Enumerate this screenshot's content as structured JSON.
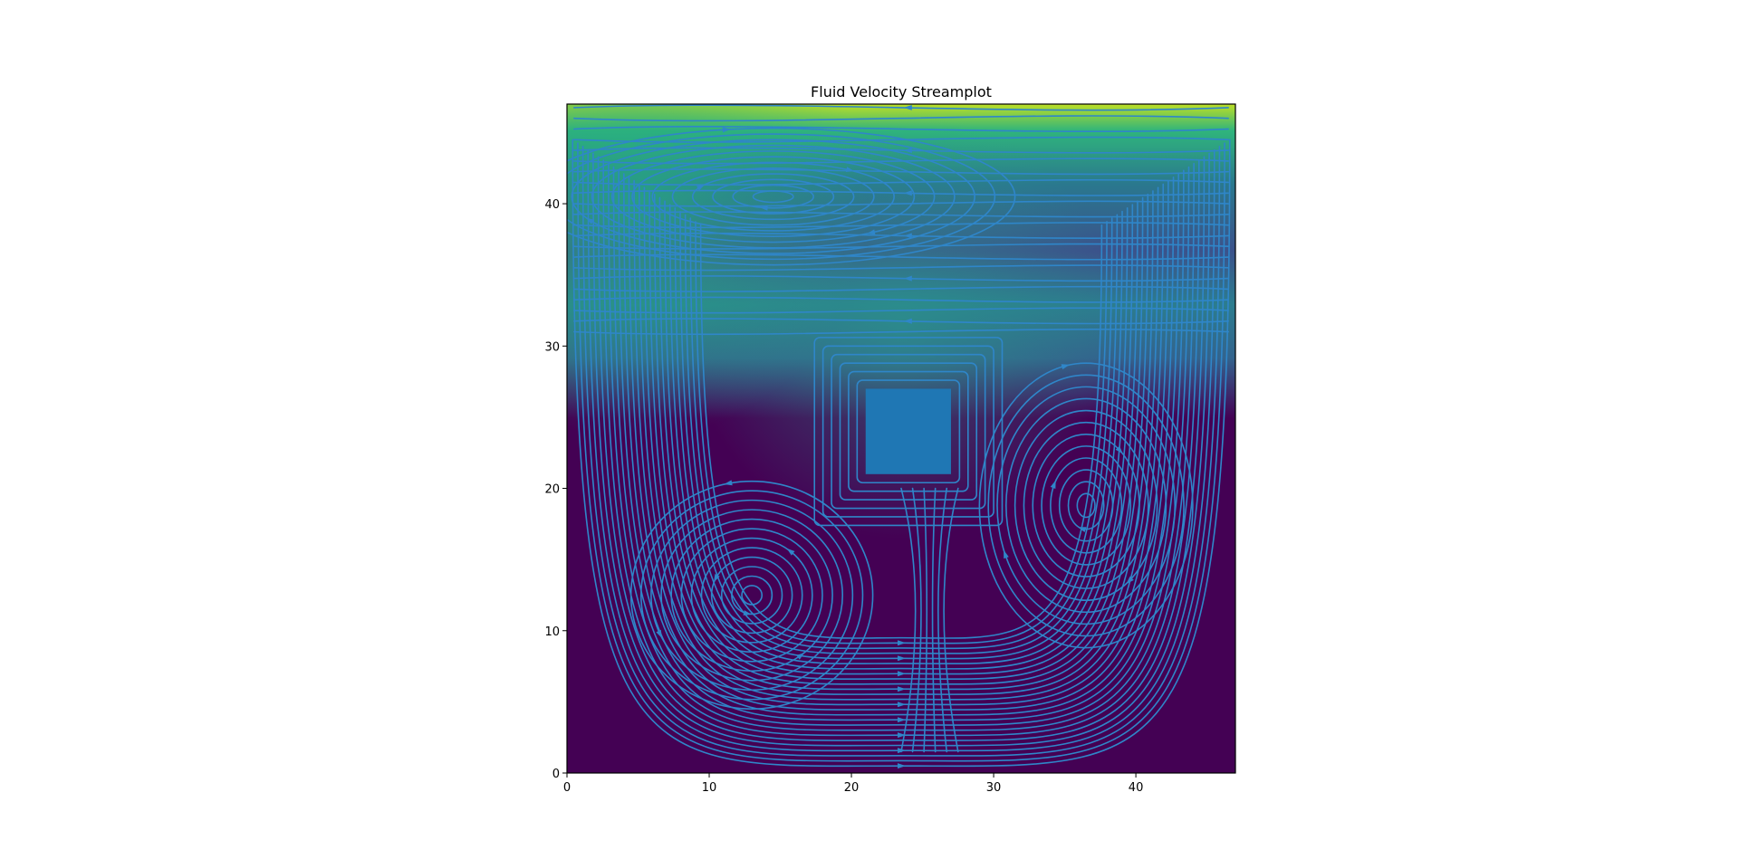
{
  "chart_data": {
    "type": "streamplot",
    "title": "Fluid Velocity Streamplot",
    "xlabel": "",
    "ylabel": "",
    "xlim": [
      0,
      47
    ],
    "ylim": [
      0,
      47
    ],
    "xticks": [
      0,
      10,
      20,
      30,
      40
    ],
    "yticks": [
      0,
      10,
      20,
      30,
      40
    ],
    "background_colormap": "viridis",
    "streamline_color": "#2f86c9",
    "obstacle": {
      "x_range": [
        21,
        27
      ],
      "y_range": [
        21,
        27
      ],
      "color": "#1f77b4"
    },
    "vortices": [
      {
        "x": 14.5,
        "y": 40.5,
        "rotation": "clockwise"
      },
      {
        "x": 13,
        "y": 12.5,
        "rotation": "counterclockwise"
      },
      {
        "x": 36.5,
        "y": 18.8,
        "rotation": "clockwise"
      }
    ],
    "saddle_point": {
      "x": 25.5,
      "y": 12
    },
    "lid_velocity_band": {
      "y_range": [
        43,
        47
      ],
      "level": "high"
    }
  }
}
